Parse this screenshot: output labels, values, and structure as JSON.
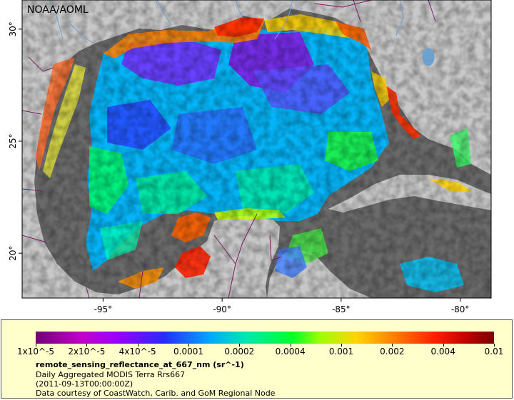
{
  "map": {
    "credit": "NOAA/AOML",
    "x_ticks": [
      {
        "label": "-95°",
        "lon": -95
      },
      {
        "label": "-90°",
        "lon": -90
      },
      {
        "label": "-85°",
        "lon": -85
      },
      {
        "label": "-80°",
        "lon": -80
      }
    ],
    "y_ticks": [
      {
        "label": "30°",
        "lat": 30
      },
      {
        "label": "25°",
        "lat": 25
      },
      {
        "label": "20°",
        "lat": 20
      }
    ],
    "colors": {
      "land": "#c8c8c8",
      "no_data": "#6a6a6a",
      "water_feature": "#6ea0d0",
      "border": "#7a1f6a",
      "frame": "#000000"
    }
  },
  "legend": {
    "labels": [
      "1x10^-5",
      "2x10^-5",
      "4x10^-5",
      "0.0001",
      "0.0002",
      "0.0004",
      "0.001",
      "0.002",
      "0.004",
      "0.01"
    ],
    "colormap": [
      "#70007a",
      "#c400c8",
      "#2a2aff",
      "#00a8ff",
      "#00e8b0",
      "#00ff2a",
      "#9cff00",
      "#ffd400",
      "#ff8000",
      "#ff2000",
      "#7a0000"
    ],
    "variable": "remote_sensing_reflectance_at_667_nm (sr^-1)",
    "dataset": "Daily Aggregated MODIS Terra Rrs667",
    "time": "(2011-09-13T00:00:00Z)",
    "courtesy": "Data courtesy of CoastWatch, Carib. and GoM Regional Node"
  }
}
